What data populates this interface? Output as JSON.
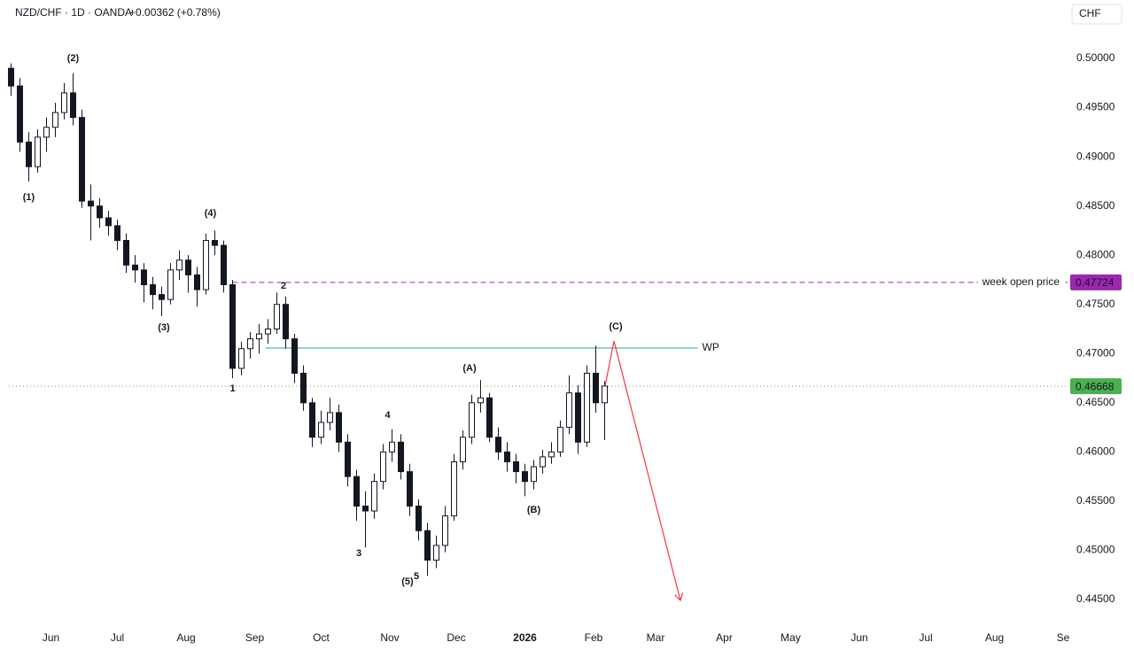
{
  "chart_data": {
    "type": "candlestick",
    "title": "NZD/CHF · 1D · OANDA",
    "change": "+0.00362 (+0.78%)",
    "currency": "CHF",
    "xlim": [
      -19,
      459
    ],
    "xticks": [
      {
        "value": 0,
        "label": "Jun"
      },
      {
        "value": 30,
        "label": "Jul"
      },
      {
        "value": 61,
        "label": "Aug"
      },
      {
        "value": 92,
        "label": "Sep"
      },
      {
        "value": 122,
        "label": "Oct"
      },
      {
        "value": 153,
        "label": "Nov"
      },
      {
        "value": 183,
        "label": "Dec"
      },
      {
        "value": 214,
        "label": "2026"
      },
      {
        "value": 245,
        "label": "Feb"
      },
      {
        "value": 273,
        "label": "Mar"
      },
      {
        "value": 304,
        "label": "Apr"
      },
      {
        "value": 334,
        "label": "May"
      },
      {
        "value": 365,
        "label": "Jun"
      },
      {
        "value": 395,
        "label": "Jul"
      },
      {
        "value": 426,
        "label": "Aug"
      },
      {
        "value": 457,
        "label": "Se"
      }
    ],
    "ylim": [
      0.44248,
      0.50594
    ],
    "yticks": [
      {
        "value": 0.445,
        "label": "0.44500"
      },
      {
        "value": 0.45,
        "label": "0.45000"
      },
      {
        "value": 0.455,
        "label": "0.45500"
      },
      {
        "value": 0.46,
        "label": "0.46000"
      },
      {
        "value": 0.465,
        "label": "0.46500"
      },
      {
        "value": 0.47,
        "label": "0.47000"
      },
      {
        "value": 0.475,
        "label": "0.47500"
      },
      {
        "value": 0.48,
        "label": "0.48000"
      },
      {
        "value": 0.485,
        "label": "0.48500"
      },
      {
        "value": 0.49,
        "label": "0.49000"
      },
      {
        "value": 0.495,
        "label": "0.49500"
      },
      {
        "value": 0.5,
        "label": "0.50000"
      }
    ],
    "up_color": "#ffffff",
    "down_color": "#131722",
    "x": [
      -18,
      -14,
      -10,
      -6,
      -2,
      2,
      6,
      10,
      14,
      18,
      22,
      26,
      30,
      34,
      38,
      42,
      46,
      50,
      54,
      58,
      62,
      66,
      70,
      74,
      78,
      82,
      86,
      90,
      94,
      98,
      102,
      106,
      110,
      114,
      118,
      122,
      126,
      130,
      134,
      138,
      142,
      146,
      150,
      154,
      158,
      162,
      166,
      170,
      174,
      178,
      182,
      186,
      190,
      194,
      198,
      202,
      206,
      210,
      214,
      218,
      222,
      226,
      230,
      234,
      238,
      242,
      246,
      250
    ],
    "open": [
      0.499,
      0.4972,
      0.4915,
      0.489,
      0.492,
      0.493,
      0.4945,
      0.4965,
      0.494,
      0.4855,
      0.485,
      0.4838,
      0.483,
      0.4815,
      0.479,
      0.4785,
      0.477,
      0.476,
      0.4755,
      0.4785,
      0.4795,
      0.478,
      0.4765,
      0.4815,
      0.481,
      0.477,
      0.4685,
      0.4705,
      0.4715,
      0.472,
      0.4725,
      0.475,
      0.4715,
      0.468,
      0.465,
      0.4615,
      0.463,
      0.464,
      0.461,
      0.4575,
      0.4545,
      0.454,
      0.457,
      0.46,
      0.461,
      0.458,
      0.4545,
      0.452,
      0.449,
      0.4505,
      0.4535,
      0.459,
      0.4615,
      0.465,
      0.4655,
      0.4615,
      0.46,
      0.459,
      0.458,
      0.457,
      0.4585,
      0.4595,
      0.46,
      0.4625,
      0.466,
      0.461,
      0.468,
      0.465
    ],
    "high": [
      0.4995,
      0.498,
      0.4925,
      0.4928,
      0.494,
      0.4955,
      0.4975,
      0.4985,
      0.4948,
      0.4872,
      0.4858,
      0.4845,
      0.4836,
      0.4822,
      0.48,
      0.4792,
      0.4778,
      0.4768,
      0.4792,
      0.4805,
      0.48,
      0.4788,
      0.4822,
      0.4825,
      0.4815,
      0.4775,
      0.4712,
      0.4722,
      0.473,
      0.4735,
      0.4762,
      0.4758,
      0.472,
      0.4688,
      0.4655,
      0.4642,
      0.4655,
      0.4648,
      0.4618,
      0.4582,
      0.456,
      0.4578,
      0.4608,
      0.4623,
      0.4618,
      0.4588,
      0.4552,
      0.4528,
      0.4515,
      0.4545,
      0.4598,
      0.4622,
      0.4658,
      0.4673,
      0.466,
      0.4625,
      0.461,
      0.4598,
      0.4588,
      0.4592,
      0.4602,
      0.461,
      0.4632,
      0.4678,
      0.4668,
      0.4688,
      0.4708,
      0.4672
    ],
    "low": [
      0.4962,
      0.4905,
      0.4875,
      0.4884,
      0.4905,
      0.492,
      0.4938,
      0.4932,
      0.4848,
      0.4815,
      0.4828,
      0.482,
      0.4805,
      0.4782,
      0.4772,
      0.4752,
      0.4745,
      0.4738,
      0.475,
      0.4775,
      0.4762,
      0.4748,
      0.476,
      0.48,
      0.4762,
      0.4675,
      0.4678,
      0.4695,
      0.47,
      0.471,
      0.472,
      0.4705,
      0.467,
      0.4642,
      0.4605,
      0.4608,
      0.4622,
      0.46,
      0.4565,
      0.453,
      0.4503,
      0.4532,
      0.4562,
      0.459,
      0.4572,
      0.4535,
      0.451,
      0.4474,
      0.4482,
      0.4498,
      0.453,
      0.4582,
      0.4608,
      0.464,
      0.461,
      0.4592,
      0.458,
      0.4568,
      0.4555,
      0.4562,
      0.4578,
      0.4588,
      0.4595,
      0.4618,
      0.4598,
      0.4605,
      0.464,
      0.4612
    ],
    "close": [
      0.4972,
      0.4915,
      0.489,
      0.492,
      0.493,
      0.4945,
      0.4965,
      0.494,
      0.4855,
      0.485,
      0.4838,
      0.483,
      0.4815,
      0.479,
      0.4785,
      0.477,
      0.476,
      0.4755,
      0.4785,
      0.4795,
      0.478,
      0.4765,
      0.4815,
      0.481,
      0.477,
      0.4685,
      0.4705,
      0.4715,
      0.472,
      0.4725,
      0.475,
      0.4715,
      0.468,
      0.465,
      0.4615,
      0.463,
      0.464,
      0.461,
      0.4575,
      0.4545,
      0.454,
      0.457,
      0.46,
      0.461,
      0.458,
      0.4545,
      0.452,
      0.449,
      0.4505,
      0.4535,
      0.459,
      0.4615,
      0.465,
      0.4655,
      0.4615,
      0.46,
      0.459,
      0.458,
      0.457,
      0.4585,
      0.4595,
      0.46,
      0.4625,
      0.466,
      0.461,
      0.468,
      0.465,
      0.4667
    ],
    "hlines": [
      {
        "name": "week open price",
        "value": 0.47724,
        "color": "#9c27b0",
        "text_color": "#089981",
        "style": "dashed",
        "x_start": 82,
        "tag": true
      },
      {
        "name": "WP",
        "value": 0.47057,
        "color": "#26a69a",
        "text_color": "#2962ff",
        "style": "solid",
        "x_start": 97,
        "x_end": 292,
        "tag": false
      },
      {
        "value": 0.46668,
        "color": "#4caf50",
        "style": "dotted",
        "tag": true
      }
    ],
    "projection": {
      "color": "#f23645",
      "x": [
        250.2,
        254.2,
        284.2
      ],
      "y": [
        0.46669,
        0.47128,
        0.44491
      ]
    },
    "annotations": [
      {
        "text": "(1)",
        "x": -10,
        "y": 0.48587,
        "color": "#131722"
      },
      {
        "text": "(2)",
        "x": 10,
        "y": 0.5,
        "color": "#131722"
      },
      {
        "text": "(3)",
        "x": 51,
        "y": 0.47264,
        "color": "#131722"
      },
      {
        "text": "(4)",
        "x": 72,
        "y": 0.48425,
        "color": "#131722"
      },
      {
        "text": "1",
        "x": 82,
        "y": 0.46642,
        "color": "#131722"
      },
      {
        "text": "2",
        "x": 105,
        "y": 0.47687,
        "color": "#131722"
      },
      {
        "text": "3",
        "x": 139,
        "y": 0.44968,
        "color": "#131722"
      },
      {
        "text": "4",
        "x": 152,
        "y": 0.46372,
        "color": "#131722"
      },
      {
        "text": "5",
        "x": 165,
        "y": 0.44734,
        "color": "#131722"
      },
      {
        "text": "(5)",
        "x": 161,
        "y": 0.4468,
        "color": "#131722"
      },
      {
        "text": "(A)",
        "x": 189,
        "y": 0.46849,
        "color": "#f23645"
      },
      {
        "text": "(B)",
        "x": 218,
        "y": 0.45409,
        "color": "#f23645"
      },
      {
        "text": "(C)",
        "x": 255,
        "y": 0.47272,
        "color": "#f23645"
      }
    ]
  }
}
